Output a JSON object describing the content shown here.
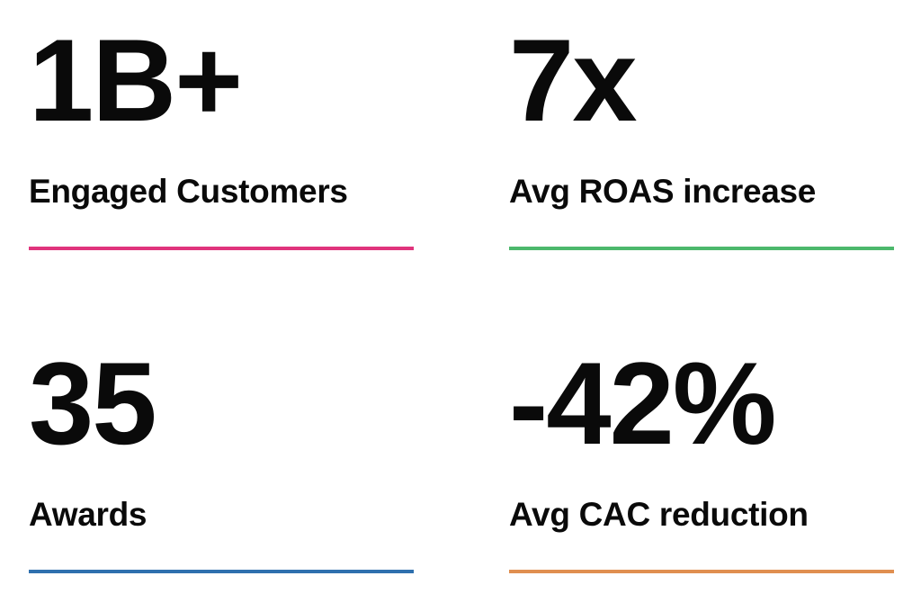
{
  "stats": [
    {
      "value": "1B+",
      "label": "Engaged Customers"
    },
    {
      "value": "7x",
      "label": "Avg ROAS increase"
    },
    {
      "value": "35",
      "label": "Awards"
    },
    {
      "value": "-42%",
      "label": "Avg CAC reduction"
    }
  ]
}
